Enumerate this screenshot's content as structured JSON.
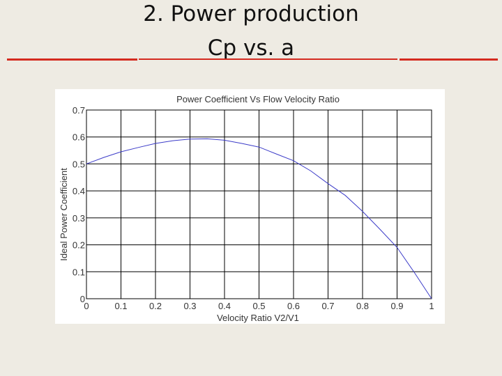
{
  "slide": {
    "title_line1": "2. Power production",
    "title_line2": "Cp vs. a",
    "accent_color": "#d42a1f",
    "background_color": "#eeebe3"
  },
  "chart_data": {
    "type": "line",
    "title": "Power Coefficient Vs Flow Velocity Ratio",
    "xlabel": "Velocity Ratio V2/V1",
    "ylabel": "Ideal Power Coefficient",
    "xlim": [
      0,
      1
    ],
    "ylim": [
      0,
      0.7
    ],
    "xticks": [
      "0",
      "0.1",
      "0.2",
      "0.3",
      "0.4",
      "0.5",
      "0.6",
      "0.7",
      "0.8",
      "0.9",
      "1"
    ],
    "yticks": [
      "0",
      "0.1",
      "0.2",
      "0.3",
      "0.4",
      "0.5",
      "0.6",
      "0.7"
    ],
    "grid": true,
    "line_color": "#3b3bc8",
    "series": [
      {
        "x": [
          0,
          0.05,
          0.1,
          0.15,
          0.2,
          0.25,
          0.3,
          0.35,
          0.4,
          0.45,
          0.5,
          0.55,
          0.6,
          0.65,
          0.7,
          0.75,
          0.8,
          0.85,
          0.9,
          0.95,
          1
        ],
        "y": [
          0.5,
          0.524,
          0.545,
          0.561,
          0.576,
          0.586,
          0.592,
          0.593,
          0.588,
          0.576,
          0.5625,
          0.537,
          0.512,
          0.474,
          0.427,
          0.383,
          0.324,
          0.258,
          0.19,
          0.097,
          0
        ]
      }
    ]
  }
}
